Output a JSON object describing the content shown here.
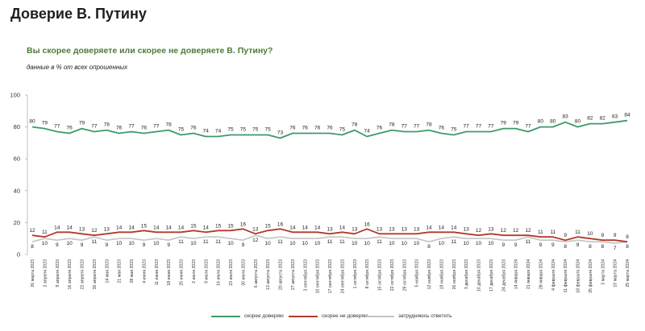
{
  "page": {
    "title": "Доверие В. Путину",
    "question": "Вы скорее доверяете или скорее не доверяете В. Путину?",
    "subtitle": "данные в % от всех опрошенных"
  },
  "chart_data": {
    "type": "line",
    "title": "Доверие В. Путину",
    "subtitle": "данные в % от всех опрошенных",
    "xlabel": "",
    "ylabel": "",
    "ylim": [
      0,
      100
    ],
    "yticks": [
      0,
      20,
      40,
      60,
      80,
      100
    ],
    "grid": false,
    "legend_position": "bottom",
    "x": [
      "26 марта 2023",
      "2 апреля 2023",
      "9 апреля 2023",
      "16 апреля 2023",
      "22 апреля 2023",
      "30 апреля 2023",
      "14 мая 2023",
      "21 мая 2023",
      "28 мая 2023",
      "4 июня 2023",
      "11 июня 2023",
      "18 июня 2023",
      "25 июня 2023",
      "2 июля 2023",
      "9 июля 2023",
      "16 июля 2023",
      "23 июля 2023",
      "30 июля 2023",
      "6 августа 2023",
      "13 августа 2023",
      "20 августа 2023",
      "27 августа 2023",
      "3 сентября 2023",
      "10 сентября 2023",
      "17 сентября 2023",
      "24 сентября 2023",
      "1 октября 2023",
      "8 октября 2023",
      "15 октября 2023",
      "22 октября 2023",
      "29 октября 2023",
      "5 ноября 2023",
      "12 ноября 2023",
      "19 ноября 2023",
      "26 ноября 2023",
      "3 декабря 2023",
      "10 декабря 2023",
      "17 декабря 2023",
      "24 декабря 2023",
      "14 января 2024",
      "21 января 2024",
      "28 января 2024",
      "4 февраля 2024",
      "11 февраля 2024",
      "18 февраля 2024",
      "25 февраля 2024",
      "3 марта 2024",
      "10 марта 2024",
      "25 марта 2024"
    ],
    "series": [
      {
        "name": "скорее доверяю",
        "color": "#3d9a6a",
        "values": [
          80,
          79,
          77,
          76,
          79,
          77,
          78,
          76,
          77,
          76,
          77,
          78,
          75,
          76,
          74,
          74,
          75,
          75,
          75,
          75,
          73,
          76,
          76,
          76,
          76,
          75,
          78,
          74,
          76,
          78,
          77,
          77,
          78,
          76,
          75,
          77,
          77,
          77,
          79,
          79,
          77,
          80,
          80,
          83,
          80,
          82,
          82,
          83,
          84
        ]
      },
      {
        "name": "скорее не доверяю",
        "color": "#b33a2a",
        "values": [
          12,
          11,
          14,
          14,
          13,
          12,
          13,
          14,
          14,
          15,
          14,
          14,
          14,
          15,
          14,
          15,
          15,
          16,
          13,
          15,
          16,
          14,
          14,
          14,
          13,
          14,
          13,
          16,
          13,
          13,
          13,
          13,
          14,
          14,
          14,
          13,
          12,
          13,
          12,
          12,
          12,
          11,
          11,
          9,
          11,
          10,
          9,
          9,
          8
        ]
      },
      {
        "name": "затрудняюсь ответить",
        "color": "#c4c4c4",
        "values": [
          8,
          10,
          9,
          10,
          9,
          11,
          9,
          10,
          10,
          9,
          10,
          9,
          11,
          10,
          11,
          11,
          10,
          9,
          12,
          10,
          11,
          10,
          10,
          10,
          11,
          11,
          10,
          10,
          11,
          10,
          10,
          10,
          8,
          10,
          11,
          10,
          10,
          10,
          9,
          9,
          11,
          9,
          9,
          8,
          9,
          8,
          8,
          7,
          8
        ]
      }
    ]
  }
}
